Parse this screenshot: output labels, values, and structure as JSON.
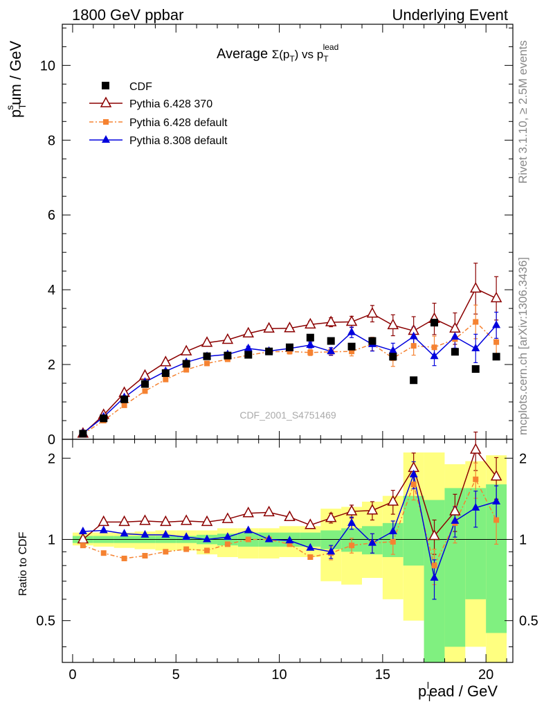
{
  "header": {
    "left": "1800 GeV ppbar",
    "right": "Underlying Event"
  },
  "side": {
    "rivet": "Rivet 3.1.10, ≥ 2.5M events",
    "mcplots": "mcplots.cern.ch [arXiv:1306.3436]"
  },
  "colors": {
    "cdf": "#000000",
    "p6_370": "#8b0000",
    "p6_def": "#f58231",
    "p8_def": "#0000dd",
    "band_inner": "#80f080",
    "band_outer": "#ffff80"
  },
  "chart_data": [
    {
      "type": "line",
      "title": "Average Σ(p_T) vs p_T^lead",
      "title_parts": {
        "main": "Average ",
        "sigma": "Σ(p",
        "subT": "T",
        "close": ") vs p",
        "sup": "lead"
      },
      "xlabel": "p_T^lead / GeV",
      "xlabel_parts": {
        "p": "p",
        "sub": "T",
        "sup": "l",
        "rest": "ead / GeV"
      },
      "ylabel": "p_T^sum / GeV",
      "ylabel_parts": {
        "p": "p",
        "sub": "T",
        "sup": "s",
        "rest": "um / GeV"
      },
      "watermark": "CDF_2001_S4751469",
      "xlim": [
        -0.5,
        21.3
      ],
      "ylim": [
        0,
        11.1
      ],
      "yticks": [
        0,
        2,
        4,
        6,
        8,
        10
      ],
      "legend_position": "top-left",
      "x": [
        0.5,
        1.5,
        2.5,
        3.5,
        4.5,
        5.5,
        6.5,
        7.5,
        8.5,
        9.5,
        10.5,
        11.5,
        12.5,
        13.5,
        14.5,
        15.5,
        16.5,
        17.5,
        18.5,
        19.5,
        20.5
      ],
      "series": [
        {
          "name": "CDF",
          "marker": "square",
          "values": [
            0.15,
            0.56,
            1.07,
            1.48,
            1.77,
            2.02,
            2.22,
            2.24,
            2.26,
            2.35,
            2.46,
            2.72,
            2.63,
            2.48,
            2.63,
            2.21,
            1.58,
            3.12,
            2.34,
            1.88,
            2.21
          ]
        },
        {
          "name": "Pythia 6.428 370",
          "marker": "open-triangle",
          "values": [
            0.15,
            0.65,
            1.24,
            1.7,
            2.06,
            2.35,
            2.58,
            2.66,
            2.83,
            2.96,
            2.97,
            3.07,
            3.13,
            3.14,
            3.36,
            3.05,
            2.9,
            3.22,
            2.96,
            4.03,
            3.77
          ],
          "errors": [
            0.02,
            0.03,
            0.04,
            0.05,
            0.06,
            0.06,
            0.07,
            0.07,
            0.07,
            0.08,
            0.08,
            0.09,
            0.12,
            0.15,
            0.22,
            0.28,
            0.38,
            0.42,
            0.42,
            0.68,
            0.58
          ]
        },
        {
          "name": "Pythia 6.428 default",
          "marker": "square-small",
          "values": [
            0.14,
            0.5,
            0.91,
            1.29,
            1.6,
            1.86,
            2.03,
            2.14,
            2.25,
            2.34,
            2.35,
            2.32,
            2.34,
            2.35,
            2.55,
            2.17,
            2.5,
            2.46,
            2.68,
            3.14,
            2.6
          ],
          "errors": [
            0.02,
            0.03,
            0.04,
            0.04,
            0.05,
            0.05,
            0.06,
            0.06,
            0.06,
            0.07,
            0.07,
            0.08,
            0.1,
            0.12,
            0.18,
            0.22,
            0.25,
            0.3,
            0.32,
            0.45,
            0.45
          ]
        },
        {
          "name": "Pythia 8.308 default",
          "marker": "triangle",
          "values": [
            0.16,
            0.6,
            1.12,
            1.53,
            1.82,
            2.06,
            2.22,
            2.27,
            2.43,
            2.36,
            2.43,
            2.52,
            2.35,
            2.86,
            2.54,
            2.37,
            2.75,
            2.22,
            2.74,
            2.43,
            3.05
          ],
          "errors": [
            0.02,
            0.03,
            0.04,
            0.04,
            0.05,
            0.05,
            0.06,
            0.06,
            0.06,
            0.07,
            0.07,
            0.08,
            0.1,
            0.14,
            0.18,
            0.2,
            0.25,
            0.25,
            0.3,
            0.38,
            0.35
          ]
        }
      ]
    },
    {
      "type": "line",
      "ylabel": "Ratio to CDF",
      "ylim": [
        0.35,
        2.35
      ],
      "yticks": [
        0.5,
        1,
        2
      ],
      "ytick_labels": [
        "0.5",
        "1",
        "2"
      ],
      "xticks": [
        0,
        5,
        10,
        15,
        20
      ],
      "xtick_labels": [
        "0",
        "5",
        "10",
        "15",
        "20"
      ],
      "x": [
        0.5,
        1.5,
        2.5,
        3.5,
        4.5,
        5.5,
        6.5,
        7.5,
        8.5,
        9.5,
        10.5,
        11.5,
        12.5,
        13.5,
        14.5,
        15.5,
        16.5,
        17.5,
        18.5,
        19.5,
        20.5
      ],
      "bands": {
        "inner_lo": [
          0.97,
          0.97,
          0.97,
          0.97,
          0.97,
          0.97,
          0.96,
          0.95,
          0.94,
          0.94,
          0.94,
          0.94,
          0.92,
          0.9,
          0.88,
          0.86,
          0.8,
          0.2,
          0.4,
          0.6,
          0.45
        ],
        "inner_hi": [
          1.03,
          1.03,
          1.03,
          1.03,
          1.03,
          1.03,
          1.04,
          1.05,
          1.06,
          1.06,
          1.06,
          1.06,
          1.08,
          1.1,
          1.12,
          1.15,
          1.45,
          1.4,
          1.55,
          1.55,
          1.6
        ],
        "outer_lo": [
          0.95,
          0.94,
          0.93,
          0.92,
          0.91,
          0.91,
          0.88,
          0.86,
          0.85,
          0.85,
          0.86,
          0.86,
          0.7,
          0.68,
          0.72,
          0.6,
          0.5,
          0.2,
          0.2,
          0.4,
          0.2
        ],
        "outer_hi": [
          1.06,
          1.06,
          1.06,
          1.07,
          1.08,
          1.08,
          1.08,
          1.1,
          1.1,
          1.1,
          1.12,
          1.12,
          1.3,
          1.32,
          1.38,
          1.45,
          2.1,
          2.1,
          1.9,
          1.95,
          2.05
        ]
      },
      "series": [
        {
          "name": "Pythia 6.428 370",
          "values": [
            1.0,
            1.16,
            1.16,
            1.17,
            1.16,
            1.17,
            1.16,
            1.19,
            1.25,
            1.26,
            1.21,
            1.13,
            1.2,
            1.27,
            1.28,
            1.38,
            1.84,
            1.03,
            1.27,
            2.15,
            1.71
          ],
          "errors": [
            0.02,
            0.02,
            0.02,
            0.02,
            0.02,
            0.02,
            0.02,
            0.02,
            0.03,
            0.03,
            0.03,
            0.03,
            0.05,
            0.07,
            0.1,
            0.14,
            0.25,
            0.15,
            0.2,
            0.35,
            0.3
          ]
        },
        {
          "name": "Pythia 6.428 default",
          "values": [
            0.95,
            0.89,
            0.85,
            0.87,
            0.9,
            0.92,
            0.91,
            0.96,
            1.0,
            1.0,
            0.96,
            0.86,
            0.89,
            0.95,
            0.97,
            0.98,
            1.6,
            0.8,
            1.15,
            1.67,
            1.18
          ],
          "errors": [
            0.02,
            0.02,
            0.02,
            0.02,
            0.02,
            0.02,
            0.02,
            0.02,
            0.03,
            0.03,
            0.03,
            0.03,
            0.05,
            0.06,
            0.08,
            0.1,
            0.2,
            0.12,
            0.18,
            0.25,
            0.22
          ]
        },
        {
          "name": "Pythia 8.308 default",
          "values": [
            1.07,
            1.08,
            1.05,
            1.04,
            1.04,
            1.02,
            1.0,
            1.02,
            1.08,
            1.0,
            0.99,
            0.93,
            0.9,
            1.15,
            0.97,
            1.07,
            1.74,
            0.72,
            1.17,
            1.31,
            1.38
          ],
          "errors": [
            0.02,
            0.02,
            0.02,
            0.02,
            0.02,
            0.02,
            0.02,
            0.02,
            0.03,
            0.03,
            0.03,
            0.03,
            0.05,
            0.06,
            0.08,
            0.1,
            0.2,
            0.12,
            0.15,
            0.2,
            0.2
          ]
        }
      ]
    }
  ]
}
